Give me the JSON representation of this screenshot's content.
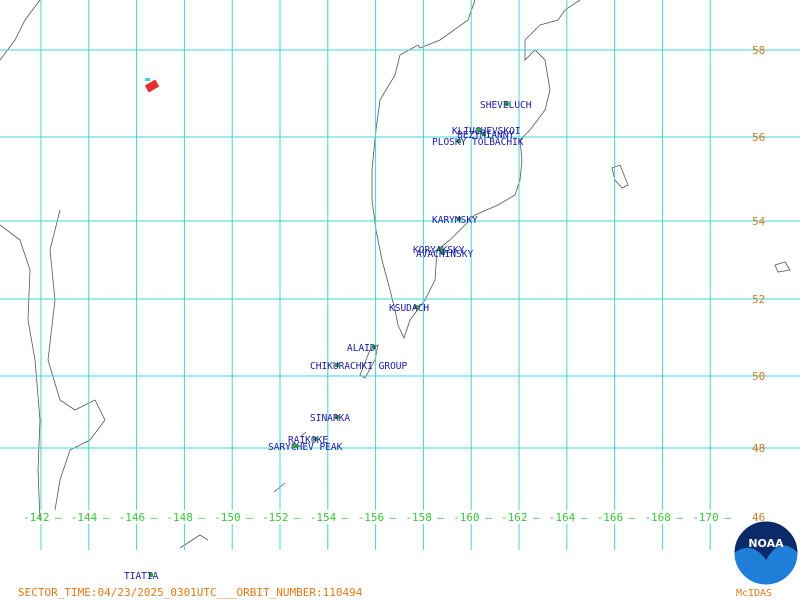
{
  "map": {
    "latitude_labels": [
      "58",
      "56",
      "54",
      "52",
      "50",
      "48",
      "46"
    ],
    "longitude_labels": [
      "-142",
      "-144",
      "-146",
      "-148",
      "-150",
      "-152",
      "-154",
      "-156",
      "-158",
      "-160",
      "-162",
      "-164",
      "-166",
      "-168",
      "-170"
    ],
    "volcanoes": [
      "SHEVELUCH",
      "KLIUCHEVSKOI",
      "BEZYMIANNY",
      "PLOSKY TOLBACHIK",
      "KARYMSKY",
      "KORYAKSKY",
      "AVACHINSKY",
      "KSUDACH",
      "ALAID",
      "CHIKURACHKI GROUP",
      "SINARKA",
      "RAIKOKE",
      "SARYCHEV PEAK",
      "TIATIA"
    ],
    "footer": "SECTOR_TIME:04/23/2025_0301UTC___ORBIT_NUMBER:110494",
    "logo": {
      "text": "NOAA",
      "caption": "McIDAS"
    }
  }
}
